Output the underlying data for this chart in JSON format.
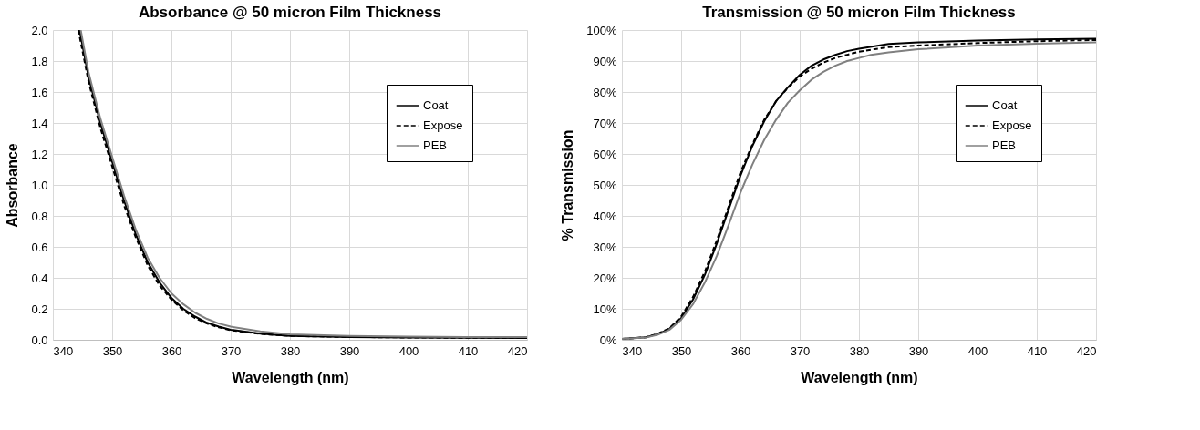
{
  "chart_data": [
    {
      "type": "line",
      "title": "Absorbance @ 50 micron Film Thickness",
      "xlabel": "Wavelength (nm)",
      "ylabel": "Absorbance",
      "xlim": [
        340,
        420
      ],
      "xticks": [
        340,
        350,
        360,
        370,
        380,
        390,
        400,
        410,
        420
      ],
      "ylim": [
        0,
        2
      ],
      "yticks": [
        {
          "value": 0,
          "label": "0.0"
        },
        {
          "value": 0.2,
          "label": "0.2"
        },
        {
          "value": 0.4,
          "label": "0.4"
        },
        {
          "value": 0.6,
          "label": "0.6"
        },
        {
          "value": 0.8,
          "label": "0.8"
        },
        {
          "value": 1,
          "label": "1.0"
        },
        {
          "value": 1.2,
          "label": "1.2"
        },
        {
          "value": 1.4,
          "label": "1.4"
        },
        {
          "value": 1.6,
          "label": "1.6"
        },
        {
          "value": 1.8,
          "label": "1.8"
        },
        {
          "value": 2,
          "label": "2.0"
        }
      ],
      "grid": true,
      "legend": "top right",
      "marker": "none",
      "series": [
        {
          "name": "Coat",
          "color": "#000000",
          "line_style": "solid",
          "x": [
            344.5,
            346,
            348,
            350,
            352,
            354,
            356,
            358,
            360,
            362,
            364,
            366,
            368,
            370,
            375,
            380,
            390,
            400,
            410,
            420
          ],
          "values": [
            2.0,
            1.7,
            1.4,
            1.15,
            0.9,
            0.68,
            0.5,
            0.37,
            0.27,
            0.2,
            0.15,
            0.11,
            0.085,
            0.065,
            0.04,
            0.025,
            0.018,
            0.015,
            0.013,
            0.012
          ]
        },
        {
          "name": "Expose",
          "color": "#000000",
          "line_style": "dashed",
          "x": [
            344.3,
            346,
            348,
            350,
            352,
            354,
            356,
            358,
            360,
            362,
            364,
            366,
            368,
            370,
            375,
            380,
            390,
            400,
            410,
            420
          ],
          "values": [
            2.0,
            1.67,
            1.37,
            1.12,
            0.87,
            0.66,
            0.48,
            0.35,
            0.26,
            0.19,
            0.14,
            0.105,
            0.08,
            0.062,
            0.038,
            0.025,
            0.018,
            0.015,
            0.013,
            0.012
          ]
        },
        {
          "name": "PEB",
          "color": "#808080",
          "line_style": "solid",
          "x": [
            344.7,
            346,
            348,
            350,
            352,
            354,
            356,
            358,
            360,
            362,
            364,
            366,
            368,
            370,
            375,
            380,
            390,
            400,
            410,
            420
          ],
          "values": [
            2.0,
            1.73,
            1.43,
            1.18,
            0.93,
            0.71,
            0.53,
            0.4,
            0.3,
            0.23,
            0.175,
            0.135,
            0.105,
            0.085,
            0.055,
            0.035,
            0.025,
            0.02,
            0.018,
            0.017
          ]
        }
      ]
    },
    {
      "type": "line",
      "title": "Transmission @ 50 micron Film Thickness",
      "xlabel": "Wavelength (nm)",
      "ylabel": "% Transmission",
      "xlim": [
        340,
        420
      ],
      "xticks": [
        340,
        350,
        360,
        370,
        380,
        390,
        400,
        410,
        420
      ],
      "ylim": [
        0,
        100
      ],
      "yticks": [
        {
          "value": 0,
          "label": "0%"
        },
        {
          "value": 10,
          "label": "10%"
        },
        {
          "value": 20,
          "label": "20%"
        },
        {
          "value": 30,
          "label": "30%"
        },
        {
          "value": 40,
          "label": "40%"
        },
        {
          "value": 50,
          "label": "50%"
        },
        {
          "value": 60,
          "label": "60%"
        },
        {
          "value": 70,
          "label": "70%"
        },
        {
          "value": 80,
          "label": "80%"
        },
        {
          "value": 90,
          "label": "90%"
        },
        {
          "value": 100,
          "label": "100%"
        }
      ],
      "grid": true,
      "legend": "top right",
      "marker": "none",
      "series": [
        {
          "name": "Coat",
          "color": "#000000",
          "line_style": "solid",
          "x": [
            340,
            344,
            346,
            348,
            350,
            352,
            354,
            356,
            358,
            360,
            362,
            364,
            366,
            368,
            370,
            372,
            374,
            376,
            378,
            380,
            385,
            390,
            400,
            410,
            420
          ],
          "values": [
            0.3,
            0.8,
            1.8,
            3.5,
            7,
            13,
            21,
            31,
            42,
            53,
            62.5,
            70.5,
            77,
            81.5,
            85.5,
            88.5,
            90.5,
            92,
            93.2,
            94,
            95.5,
            96,
            96.6,
            97,
            97.2
          ]
        },
        {
          "name": "Expose",
          "color": "#000000",
          "line_style": "dashed",
          "x": [
            340,
            344,
            346,
            348,
            350,
            352,
            354,
            356,
            358,
            360,
            362,
            364,
            366,
            368,
            370,
            372,
            374,
            376,
            378,
            380,
            385,
            390,
            400,
            410,
            420
          ],
          "values": [
            0.3,
            0.8,
            1.9,
            3.7,
            7.5,
            13.8,
            22,
            32,
            43,
            54,
            63,
            71,
            77,
            81.3,
            85,
            87.5,
            89.5,
            91,
            92,
            93,
            94.5,
            95,
            95.8,
            96.4,
            96.8
          ]
        },
        {
          "name": "PEB",
          "color": "#808080",
          "line_style": "solid",
          "x": [
            340,
            344,
            346,
            348,
            350,
            352,
            354,
            356,
            358,
            360,
            362,
            364,
            366,
            368,
            370,
            372,
            374,
            376,
            378,
            380,
            382,
            385,
            390,
            400,
            410,
            420
          ],
          "values": [
            0.3,
            0.7,
            1.6,
            3.2,
            6.5,
            11.5,
            18.5,
            27,
            37,
            47.5,
            56.5,
            64.5,
            71,
            76.5,
            80.5,
            84,
            86.5,
            88.5,
            90,
            91,
            92,
            92.8,
            93.8,
            95,
            95.6,
            96
          ]
        }
      ]
    }
  ]
}
